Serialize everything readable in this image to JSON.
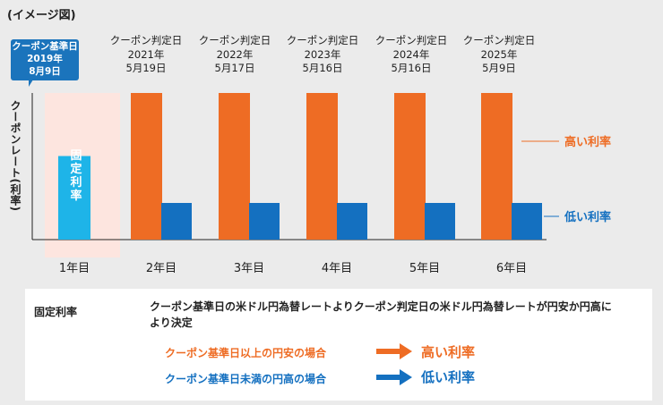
{
  "note": "(イメージ図)",
  "base_date": {
    "lines": [
      "クーポン基準日",
      "2019年",
      "8月9日"
    ]
  },
  "judgment_dates": [
    {
      "lines": [
        "クーポン判定日",
        "2021年",
        "5月19日"
      ]
    },
    {
      "lines": [
        "クーポン判定日",
        "2022年",
        "5月17日"
      ]
    },
    {
      "lines": [
        "クーポン判定日",
        "2023年",
        "5月16日"
      ]
    },
    {
      "lines": [
        "クーポン判定日",
        "2024年",
        "5月16日"
      ]
    },
    {
      "lines": [
        "クーポン判定日",
        "2025年",
        "5月9日"
      ]
    }
  ],
  "chart_data": {
    "type": "bar",
    "ylabel": "クーポンレート(利率)",
    "categories": [
      "1年目",
      "2年目",
      "3年目",
      "4年目",
      "5年目",
      "6年目"
    ],
    "fixed_rate_label": "固定利率",
    "series": [
      {
        "name": "固定利率",
        "color": "#1eb4e8",
        "values": [
          0.57,
          null,
          null,
          null,
          null,
          null
        ]
      },
      {
        "name": "高い利率",
        "color": "#ee6c24",
        "values": [
          null,
          1.0,
          1.0,
          1.0,
          1.0,
          1.0
        ]
      },
      {
        "name": "低い利率",
        "color": "#1470c0",
        "values": [
          null,
          0.25,
          0.25,
          0.25,
          0.25,
          0.25
        ]
      }
    ],
    "high_label": "高い利率",
    "low_label": "低い利率",
    "high_color": "#ee6c24",
    "low_color": "#1470c0",
    "fixed_color": "#1eb4e8",
    "fixed_band_color": "#fde5df"
  },
  "legend_panel": {
    "heading": "固定利率",
    "description": "クーポン基準日の米ドル円為替レートよりクーポン判定日の米ドル円為替レートが円安か円高により決定",
    "conditions": [
      {
        "text": "クーポン基準日以上の円安の場合",
        "result": "高い利率",
        "color": "#ee6c24"
      },
      {
        "text": "クーポン基準日未満の円高の場合",
        "result": "低い利率",
        "color": "#1470c0"
      }
    ]
  }
}
